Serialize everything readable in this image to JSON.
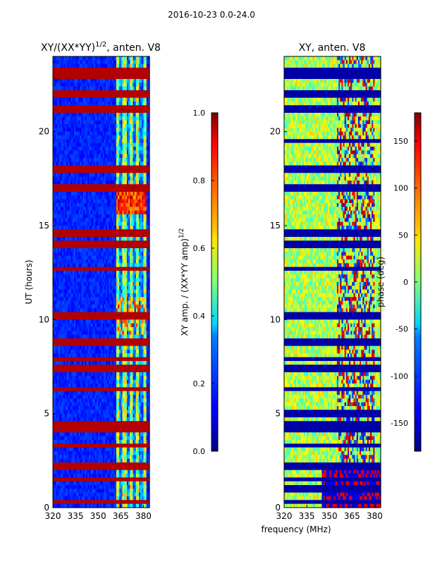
{
  "figure": {
    "suptitle": "2016-10-23 0.0-24.0",
    "xlabel": "frequency (MHz)"
  },
  "chart_data": [
    {
      "type": "heatmap",
      "title": "XY/(XX*YY)",
      "title_exponent": "1/2",
      "title_suffix": ", anten. V8",
      "xlabel": "",
      "ylabel": "UT (hours)",
      "xlim": [
        320,
        384
      ],
      "ylim": [
        0,
        24
      ],
      "xticks": [
        320,
        335,
        350,
        365,
        380
      ],
      "yticks": [
        0,
        5,
        10,
        15,
        20
      ],
      "colormap": "jet",
      "colorbar": {
        "label": "XY amp. / (XX*YY amp)",
        "label_exponent": "1/2",
        "range": [
          0.0,
          1.0
        ],
        "ticks": [
          "0.0",
          "0.2",
          "0.4",
          "0.6",
          "0.8",
          "1.0"
        ]
      },
      "saturated_rows_ut": [
        0.3,
        1.5,
        2.1,
        2.3,
        3.3,
        4.1,
        4.4,
        6.3,
        7.4,
        7.9,
        8.8,
        10.2,
        10.3,
        12.7,
        13.9,
        14.1,
        14.6,
        16.9,
        17.1,
        18.0,
        21.2,
        22.0,
        22.1,
        22.9,
        23.2
      ],
      "notes": "Low amplitude (~0.1-0.2) across 320-362 MHz; elevated amplitude (~0.3-0.7, some >0.8) in 362-382 MHz band; horizontal dark-red rows at flagged times."
    },
    {
      "type": "heatmap",
      "title": "XY, anten. V8",
      "xlabel": "",
      "ylabel": "",
      "xlim": [
        320,
        384
      ],
      "ylim": [
        0,
        24
      ],
      "xticks": [
        320,
        335,
        350,
        365,
        380
      ],
      "yticks": [
        0,
        5,
        10,
        15,
        20
      ],
      "colormap": "jet",
      "colorbar": {
        "label": "phase (deg)",
        "range": [
          -180,
          180
        ],
        "ticks": [
          "-150",
          "-100",
          "-50",
          "0",
          "50",
          "100",
          "150"
        ]
      },
      "flagged_rows_ut": [
        0.3,
        1.0,
        1.5,
        2.1,
        2.3,
        3.3,
        4.1,
        4.4,
        5.0,
        6.3,
        7.4,
        7.9,
        8.8,
        10.2,
        10.3,
        12.7,
        13.9,
        14.1,
        14.6,
        16.9,
        17.1,
        18.0,
        19.5,
        21.2,
        22.0,
        22.1,
        22.9,
        23.2
      ],
      "notes": "Phase mostly ~0 to +60 deg (green/yellow) across band; red (+120 to +180) and blue (-120 to -180) structure near 355-380 MHz; dark-blue horizontal rows at flagged times."
    }
  ]
}
